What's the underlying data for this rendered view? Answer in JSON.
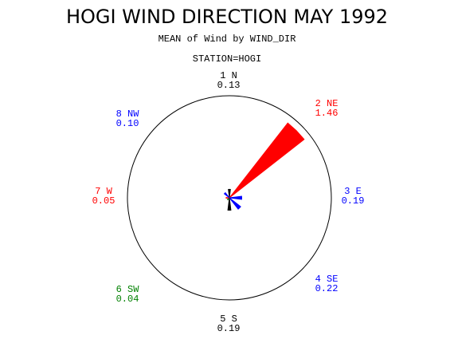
{
  "chart_data": {
    "type": "windrose",
    "title": "HOGI WIND DIRECTION MAY 1992",
    "subtitle": "MEAN of Wind by WIND_DIR",
    "panel_label": "STATION=HOGI",
    "categories": [
      "1 N",
      "2 NE",
      "3 E",
      "4 SE",
      "5 S",
      "6 SW",
      "7 W",
      "8 NW"
    ],
    "values": [
      0.13,
      1.46,
      0.19,
      0.22,
      0.19,
      0.04,
      0.05,
      0.1
    ],
    "value_labels": [
      "0.13",
      "1.46",
      "0.19",
      "0.22",
      "0.19",
      "0.04",
      "0.05",
      "0.10"
    ],
    "colors": [
      "#000000",
      "#ff0000",
      "#0000ff",
      "#0000ff",
      "#000000",
      "#008000",
      "#ff0000",
      "#0000ff"
    ]
  }
}
